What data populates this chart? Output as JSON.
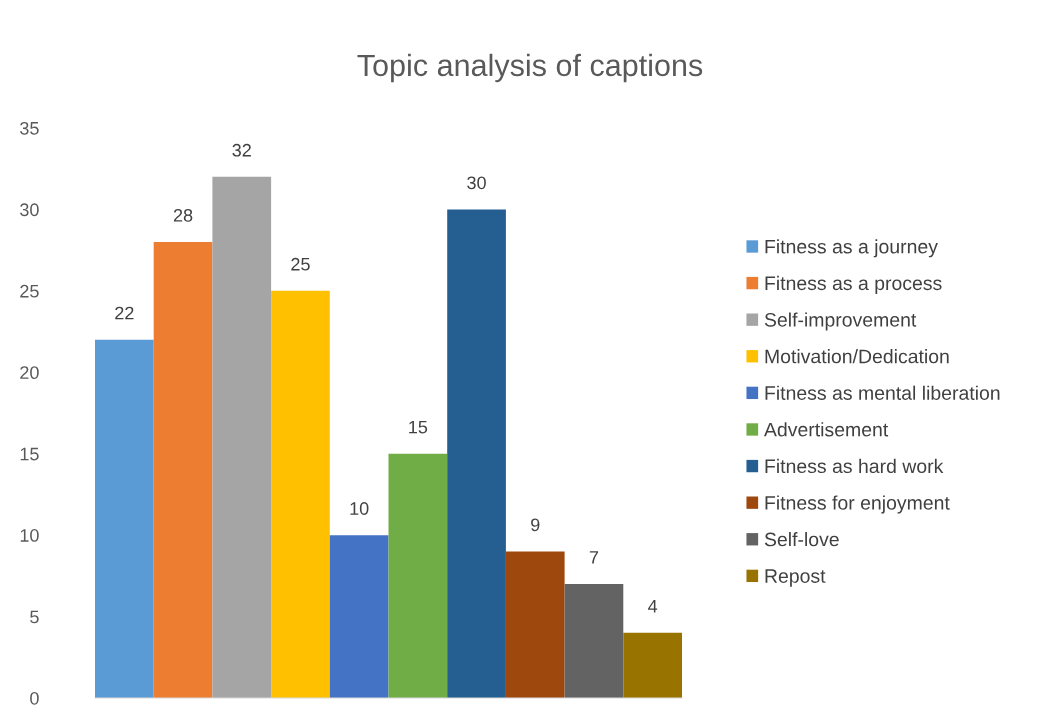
{
  "chart_data": {
    "type": "bar",
    "title": "Topic analysis of captions",
    "categories": [
      null
    ],
    "series": [
      {
        "name": "Fitness as a journey",
        "color": "#5b9bd5",
        "values": [
          22
        ]
      },
      {
        "name": "Fitness as a process",
        "color": "#ed7d31",
        "values": [
          28
        ]
      },
      {
        "name": "Self-improvement",
        "color": "#a5a5a5",
        "values": [
          32
        ]
      },
      {
        "name": "Motivation/Dedication",
        "color": "#ffc000",
        "values": [
          25
        ]
      },
      {
        "name": "Fitness as mental liberation",
        "color": "#4472c4",
        "values": [
          10
        ]
      },
      {
        "name": "Advertisement",
        "color": "#70ad47",
        "values": [
          15
        ]
      },
      {
        "name": "Fitness as hard work",
        "color": "#255e91",
        "values": [
          30
        ]
      },
      {
        "name": "Fitness for enjoyment",
        "color": "#9e480e",
        "values": [
          9
        ]
      },
      {
        "name": "Self-love",
        "color": "#636363",
        "values": [
          7
        ]
      },
      {
        "name": "Repost",
        "color": "#997300",
        "values": [
          4
        ]
      }
    ],
    "ylim": [
      0,
      35
    ],
    "yticks": [
      0,
      5,
      10,
      15,
      20,
      25,
      30,
      35
    ],
    "grid": false,
    "legend": "right",
    "data_labels": true
  }
}
